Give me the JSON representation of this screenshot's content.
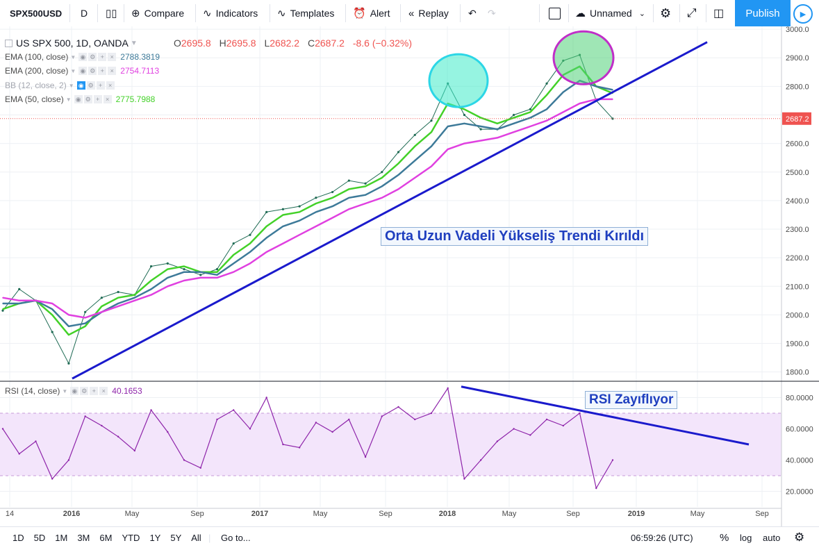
{
  "toolbar": {
    "symbol": "SPX500USD",
    "interval": "D",
    "compare": "Compare",
    "indicators": "Indicators",
    "templates": "Templates",
    "alert": "Alert",
    "replay": "Replay",
    "layout_name": "Unnamed",
    "publish": "Publish"
  },
  "legend": {
    "main": {
      "title": "US SPX 500, 1D, OANDA",
      "o_label": "O",
      "o": "2695.8",
      "h_label": "H",
      "h": "2695.8",
      "l_label": "L",
      "l": "2682.2",
      "c_label": "C",
      "c": "2687.2",
      "change": "-8.6 (−0.32%)"
    },
    "ema100": {
      "label": "EMA (100, close)",
      "value": "2788.3819",
      "color": "#3d7a99"
    },
    "ema200": {
      "label": "EMA (200, close)",
      "value": "2754.7113",
      "color": "#e040e0"
    },
    "bb": {
      "label": "BB (12, close, 2)"
    },
    "ema50": {
      "label": "EMA (50, close)",
      "value": "2775.7988",
      "color": "#43d128"
    },
    "rsi": {
      "label": "RSI (14, close)",
      "value": "40.1653",
      "color": "#8e24aa"
    }
  },
  "annotations": {
    "trend_text": "Orta Uzun Vadeli Yükseliş Trendi Kırıldı",
    "rsi_text": "RSI Zayıflıyor"
  },
  "last_price_tag": "2687.2",
  "bottom": {
    "ranges": [
      "1D",
      "5D",
      "1M",
      "3M",
      "6M",
      "YTD",
      "1Y",
      "5Y",
      "All"
    ],
    "goto": "Go to...",
    "time": "06:59:26 (UTC)",
    "percent": "%",
    "log": "log",
    "auto": "auto"
  },
  "chart_data": [
    {
      "type": "line",
      "title": "US SPX 500, 1D, OANDA",
      "x_tick_labels": [
        "14",
        "2016",
        "May",
        "Sep",
        "2017",
        "May",
        "Sep",
        "2018",
        "May",
        "Sep",
        "2019",
        "May",
        "Sep"
      ],
      "y_tick_labels": [
        "1800.0",
        "1900.0",
        "2000.0",
        "2100.0",
        "2200.0",
        "2300.0",
        "2400.0",
        "2500.0",
        "2600.0",
        "2700.0",
        "2800.0",
        "2900.0",
        "3000.0"
      ],
      "ylim": [
        1770,
        3010
      ],
      "x": [
        "2015-10",
        "2015-11",
        "2015-12",
        "2016-01",
        "2016-02",
        "2016-03",
        "2016-04",
        "2016-05",
        "2016-06",
        "2016-07",
        "2016-08",
        "2016-09",
        "2016-10",
        "2016-11",
        "2016-12",
        "2017-01",
        "2017-02",
        "2017-03",
        "2017-04",
        "2017-05",
        "2017-06",
        "2017-07",
        "2017-08",
        "2017-09",
        "2017-10",
        "2017-11",
        "2017-12",
        "2018-01",
        "2018-02",
        "2018-03",
        "2018-04",
        "2018-05",
        "2018-06",
        "2018-07",
        "2018-08",
        "2018-09",
        "2018-10",
        "2018-11"
      ],
      "series": [
        {
          "name": "US SPX 500",
          "values": [
            2015,
            2090,
            2050,
            1940,
            1830,
            2010,
            2060,
            2080,
            2070,
            2170,
            2180,
            2160,
            2140,
            2160,
            2250,
            2280,
            2360,
            2370,
            2380,
            2410,
            2430,
            2470,
            2460,
            2500,
            2570,
            2630,
            2680,
            2810,
            2700,
            2650,
            2650,
            2700,
            2720,
            2810,
            2890,
            2910,
            2750,
            2687
          ]
        },
        {
          "name": "EMA (50, close)",
          "values": [
            2020,
            2040,
            2050,
            2000,
            1930,
            1960,
            2030,
            2060,
            2070,
            2120,
            2160,
            2170,
            2150,
            2150,
            2210,
            2250,
            2310,
            2350,
            2360,
            2390,
            2410,
            2440,
            2450,
            2480,
            2530,
            2590,
            2640,
            2740,
            2720,
            2690,
            2670,
            2690,
            2710,
            2770,
            2840,
            2870,
            2800,
            2776
          ]
        },
        {
          "name": "EMA (100, close)",
          "values": [
            2040,
            2040,
            2050,
            2020,
            1960,
            1970,
            2010,
            2040,
            2060,
            2090,
            2130,
            2150,
            2150,
            2140,
            2180,
            2220,
            2270,
            2310,
            2330,
            2360,
            2380,
            2410,
            2420,
            2450,
            2490,
            2540,
            2590,
            2660,
            2670,
            2660,
            2650,
            2670,
            2690,
            2720,
            2780,
            2820,
            2800,
            2788
          ]
        },
        {
          "name": "EMA (200, close)",
          "values": [
            2060,
            2050,
            2050,
            2040,
            2000,
            1990,
            2010,
            2030,
            2050,
            2070,
            2100,
            2120,
            2130,
            2130,
            2150,
            2180,
            2220,
            2250,
            2280,
            2310,
            2340,
            2370,
            2390,
            2410,
            2440,
            2480,
            2520,
            2580,
            2600,
            2610,
            2620,
            2640,
            2660,
            2680,
            2710,
            2740,
            2755,
            2755
          ]
        }
      ]
    },
    {
      "type": "line",
      "title": "RSI (14, close)",
      "y_tick_labels": [
        "20.0000",
        "40.0000",
        "60.0000",
        "80.0000"
      ],
      "ylim": [
        10,
        90
      ],
      "bands": [
        30,
        70
      ],
      "x": [
        "2015-10",
        "2015-11",
        "2015-12",
        "2016-01",
        "2016-02",
        "2016-03",
        "2016-04",
        "2016-05",
        "2016-06",
        "2016-07",
        "2016-08",
        "2016-09",
        "2016-10",
        "2016-11",
        "2016-12",
        "2017-01",
        "2017-02",
        "2017-03",
        "2017-04",
        "2017-05",
        "2017-06",
        "2017-07",
        "2017-08",
        "2017-09",
        "2017-10",
        "2017-11",
        "2017-12",
        "2018-01",
        "2018-02",
        "2018-03",
        "2018-04",
        "2018-05",
        "2018-06",
        "2018-07",
        "2018-08",
        "2018-09",
        "2018-10",
        "2018-11"
      ],
      "series": [
        {
          "name": "RSI (14, close)",
          "values": [
            60,
            44,
            52,
            28,
            40,
            68,
            62,
            55,
            46,
            72,
            58,
            40,
            35,
            66,
            72,
            60,
            80,
            50,
            48,
            64,
            58,
            66,
            42,
            68,
            74,
            66,
            70,
            86,
            28,
            40,
            52,
            60,
            56,
            66,
            62,
            70,
            22,
            40
          ]
        }
      ]
    }
  ]
}
